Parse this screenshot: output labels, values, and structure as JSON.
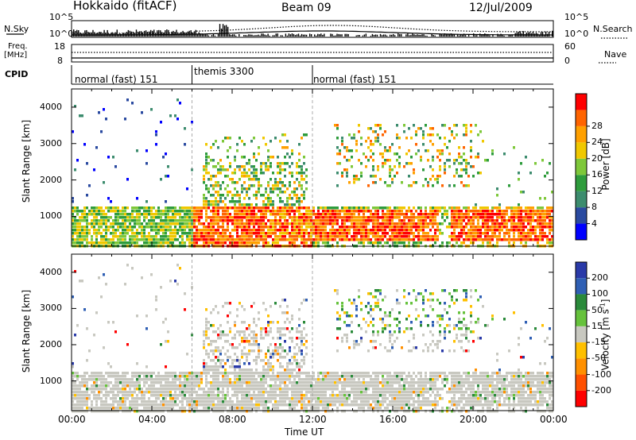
{
  "header": {
    "station": "Hokkaido (fitACF)",
    "beam": "Beam 09",
    "date": "12/Jul/2009"
  },
  "colors": {
    "power_scale": [
      "#0000ff",
      "#2a4aa0",
      "#3c8c6e",
      "#2e9c3c",
      "#7ec83a",
      "#f0c800",
      "#ffa000",
      "#ff6400",
      "#ff0000"
    ],
    "velocity_scale": [
      "#2a3aa8",
      "#2f5fb4",
      "#2a8a3a",
      "#66c23c",
      "#c8c8c0",
      "#ffc000",
      "#ff9000",
      "#ff5000",
      "#ff0000"
    ],
    "ground_scatter": "#c8c8c0"
  },
  "labels": {
    "nsky": "N.Sky",
    "nsearch": "N.Search",
    "freq": "Freq.",
    "mhz": "[MHz]",
    "nave": "Nave",
    "cpid": "CPID",
    "slant_range": "Slant Range [km]",
    "time_ut": "Time UT",
    "power_axis": "Power [dB]",
    "velocity_axis": "Velocity [m s",
    "velocity_sup": "-1",
    "velocity_close": "]",
    "nsky_top": "10^5",
    "nsky_bottom": "10^0",
    "nsearch_top": "10^5",
    "nsearch_bottom": "10^0",
    "freq_top": "18",
    "freq_bottom": "8",
    "nave_top": "60",
    "nave_bottom": "0"
  },
  "cpid": [
    {
      "name": "normal (fast) 151",
      "start": "00:00",
      "end": "06:00"
    },
    {
      "name": "themis 3300",
      "start": "06:00",
      "end": "12:00"
    },
    {
      "name": "normal (fast) 151",
      "start": "12:00",
      "end": "24:00"
    }
  ],
  "chart_data": [
    {
      "type": "heatmap",
      "title": "Power",
      "xlabel": "Time UT",
      "ylabel": "Slant Range [km]",
      "x_ticks": [
        "00:00",
        "04:00",
        "08:00",
        "12:00",
        "16:00",
        "20:00",
        "00:00"
      ],
      "y_ticks": [
        1000,
        2000,
        3000,
        4000
      ],
      "xlim_hours": [
        0,
        24
      ],
      "ylim_km": [
        180,
        4500
      ],
      "colorbar": {
        "label": "Power [dB]",
        "ticks": [
          4,
          8,
          12,
          16,
          20,
          24,
          28
        ],
        "range": [
          0,
          30
        ]
      },
      "region_estimates": [
        {
          "time": "00:00-06:00",
          "range_km": "300-1300",
          "power_db": "10-20"
        },
        {
          "time": "06:00-09:30",
          "range_km": "300-1300",
          "power_db": "24-30"
        },
        {
          "time": "09:30-12:00",
          "range_km": "300-1300",
          "power_db": "18-30"
        },
        {
          "time": "12:30-18:00",
          "range_km": "400-1200",
          "power_db": "24-30"
        },
        {
          "time": "18:30-24:00",
          "range_km": "400-1200",
          "power_db": "20-30"
        },
        {
          "time": "07:00-11:30",
          "range_km": "1500-3300",
          "power_db": "8-24"
        },
        {
          "time": "14:00-20:00",
          "range_km": "1800-3500",
          "power_db": "12-24"
        }
      ]
    },
    {
      "type": "heatmap",
      "title": "Velocity",
      "xlabel": "Time UT",
      "ylabel": "Slant Range [km]",
      "x_ticks": [
        "00:00",
        "04:00",
        "08:00",
        "12:00",
        "16:00",
        "20:00",
        "00:00"
      ],
      "y_ticks": [
        1000,
        2000,
        3000,
        4000
      ],
      "xlim_hours": [
        0,
        24
      ],
      "ylim_km": [
        180,
        4500
      ],
      "colorbar": {
        "label": "Velocity [m s-1]",
        "ticks": [
          200,
          100,
          50,
          15,
          -15,
          -50,
          -100,
          -200
        ],
        "range": [
          -250,
          250
        ]
      },
      "region_estimates": [
        {
          "time": "00:00-24:00",
          "range_km": "300-1300",
          "velocity": "-15 to 15 (ground scatter)"
        },
        {
          "time": "07:00-11:30",
          "range_km": "1500-2700",
          "velocity": "-15 to 15"
        },
        {
          "time": "13:00-20:00",
          "range_km": "2500-3500",
          "velocity": "15-100"
        }
      ]
    },
    {
      "type": "line",
      "title": "N.Sky / N.Search",
      "ylabel": "N.Sky",
      "y_ticks": [
        "10^0",
        "10^5"
      ]
    },
    {
      "type": "line",
      "title": "Freq / Nave",
      "ylabel": "Freq. [MHz]",
      "y_ticks": [
        8,
        18
      ],
      "y2_ticks": [
        0,
        60
      ]
    }
  ]
}
